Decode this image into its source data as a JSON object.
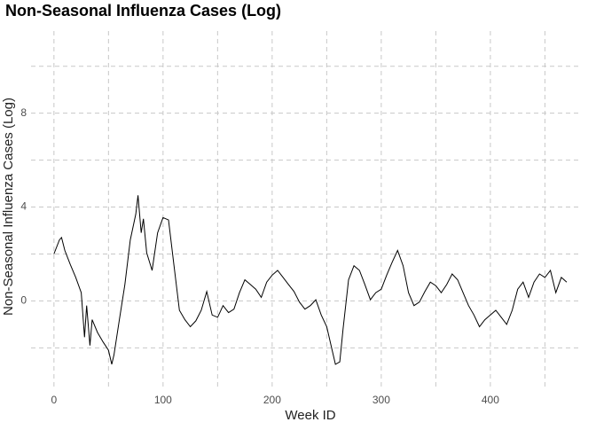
{
  "chart_data": {
    "type": "line",
    "title": "Non-Seasonal Influenza Cases (Log)",
    "x_label": "Week ID",
    "y_label": "Non-Seasonal Influenza Cases (Log)",
    "x": [
      0,
      5,
      7,
      10,
      15,
      20,
      25,
      28,
      30,
      33,
      35,
      40,
      45,
      50,
      53,
      55,
      60,
      65,
      70,
      75,
      77,
      80,
      82,
      85,
      90,
      95,
      100,
      105,
      110,
      115,
      120,
      125,
      130,
      135,
      140,
      145,
      150,
      155,
      160,
      165,
      170,
      175,
      180,
      185,
      190,
      195,
      200,
      205,
      210,
      215,
      220,
      225,
      230,
      235,
      240,
      245,
      250,
      255,
      258,
      262,
      265,
      270,
      275,
      280,
      285,
      290,
      295,
      300,
      305,
      310,
      315,
      320,
      325,
      330,
      335,
      340,
      345,
      350,
      355,
      360,
      365,
      370,
      375,
      380,
      385,
      390,
      395,
      400,
      405,
      410,
      415,
      420,
      425,
      430,
      435,
      440,
      445,
      450,
      455,
      460,
      465,
      470
    ],
    "series": [
      {
        "name": "cases",
        "color": "#000000",
        "values": [
          2.0,
          2.6,
          2.7,
          2.15,
          1.55,
          1.0,
          0.35,
          -1.55,
          -0.2,
          -1.9,
          -0.8,
          -1.35,
          -1.75,
          -2.1,
          -2.7,
          -2.3,
          -0.8,
          0.7,
          2.6,
          3.7,
          4.5,
          2.9,
          3.5,
          2.05,
          1.3,
          2.9,
          3.55,
          3.45,
          1.5,
          -0.4,
          -0.8,
          -1.1,
          -0.85,
          -0.4,
          0.4,
          -0.6,
          -0.7,
          -0.2,
          -0.5,
          -0.35,
          0.35,
          0.9,
          0.7,
          0.5,
          0.15,
          0.8,
          1.1,
          1.3,
          1.0,
          0.7,
          0.4,
          -0.05,
          -0.35,
          -0.2,
          0.05,
          -0.6,
          -1.1,
          -2.1,
          -2.7,
          -2.6,
          -1.2,
          0.9,
          1.5,
          1.3,
          0.7,
          0.05,
          0.35,
          0.5,
          1.1,
          1.65,
          2.15,
          1.5,
          0.35,
          -0.2,
          -0.05,
          0.4,
          0.8,
          0.65,
          0.35,
          0.7,
          1.15,
          0.9,
          0.35,
          -0.2,
          -0.6,
          -1.1,
          -0.8,
          -0.6,
          -0.4,
          -0.7,
          -1.0,
          -0.4,
          0.5,
          0.8,
          0.15,
          0.8,
          1.15,
          1.0,
          1.3,
          0.35,
          1.0,
          0.8
        ]
      }
    ],
    "xlim": [
      -21,
      483
    ],
    "ylim": [
      -3.8,
      11.5
    ],
    "xticks": [
      0,
      100,
      200,
      300,
      400
    ],
    "yticks": [
      0,
      4,
      8
    ],
    "x_minor_ticks": [
      50,
      150,
      250,
      350,
      450
    ],
    "y_minor_ticks": [
      -2,
      2,
      6,
      10
    ],
    "grid": true
  }
}
